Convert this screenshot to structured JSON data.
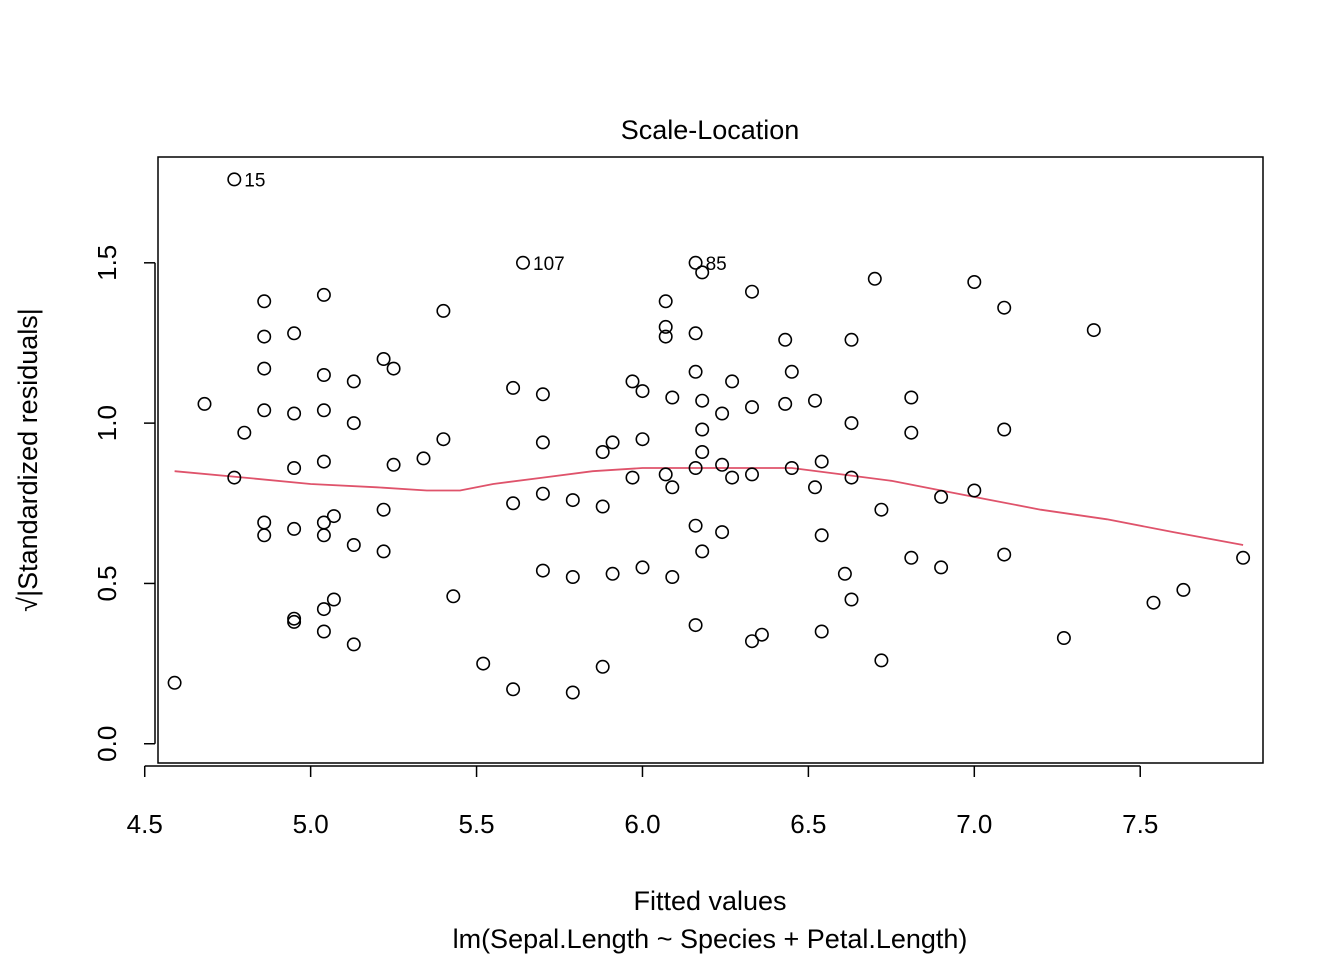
{
  "chart_data": {
    "type": "scatter",
    "title": "Scale-Location",
    "xlabel": "Fitted values",
    "xsublabel": "lm(Sepal.Length ~ Species + Petal.Length)",
    "ylabel": "√|Standardized residuals|",
    "xlim": [
      4.54,
      7.87
    ],
    "ylim": [
      -0.06,
      1.83
    ],
    "xticks": [
      "4.5",
      "5.0",
      "5.5",
      "6.0",
      "6.5",
      "7.0",
      "7.5"
    ],
    "yticks": [
      "0.0",
      "0.5",
      "1.0",
      "1.5"
    ],
    "grid": false,
    "colors": {
      "points": "#000000",
      "smooth": "#DF536B",
      "frame": "#000000"
    },
    "labeled_points": [
      {
        "label": "15",
        "x": 4.77,
        "y": 1.76
      },
      {
        "label": "107",
        "x": 5.64,
        "y": 1.5
      },
      {
        "label": "85",
        "x": 6.16,
        "y": 1.5
      }
    ],
    "points": [
      [
        4.77,
        1.76
      ],
      [
        5.64,
        1.5
      ],
      [
        6.16,
        1.5
      ],
      [
        4.59,
        0.19
      ],
      [
        4.68,
        1.06
      ],
      [
        4.77,
        0.83
      ],
      [
        4.8,
        0.97
      ],
      [
        4.86,
        1.38
      ],
      [
        4.86,
        1.27
      ],
      [
        4.86,
        1.17
      ],
      [
        4.86,
        1.04
      ],
      [
        4.86,
        0.69
      ],
      [
        4.86,
        0.65
      ],
      [
        4.95,
        1.28
      ],
      [
        4.95,
        1.03
      ],
      [
        4.95,
        0.86
      ],
      [
        4.95,
        0.67
      ],
      [
        4.95,
        0.39
      ],
      [
        4.95,
        0.38
      ],
      [
        5.04,
        1.4
      ],
      [
        5.04,
        1.15
      ],
      [
        5.04,
        1.04
      ],
      [
        5.04,
        0.88
      ],
      [
        5.04,
        0.69
      ],
      [
        5.04,
        0.65
      ],
      [
        5.04,
        0.42
      ],
      [
        5.04,
        0.35
      ],
      [
        5.07,
        0.71
      ],
      [
        5.07,
        0.45
      ],
      [
        5.13,
        1.13
      ],
      [
        5.13,
        1.0
      ],
      [
        5.13,
        0.62
      ],
      [
        5.13,
        0.31
      ],
      [
        5.22,
        1.2
      ],
      [
        5.22,
        0.73
      ],
      [
        5.22,
        0.6
      ],
      [
        5.25,
        1.17
      ],
      [
        5.25,
        0.87
      ],
      [
        5.34,
        0.89
      ],
      [
        5.4,
        1.35
      ],
      [
        5.4,
        0.95
      ],
      [
        5.43,
        0.46
      ],
      [
        5.52,
        0.25
      ],
      [
        5.61,
        1.11
      ],
      [
        5.61,
        0.75
      ],
      [
        5.61,
        0.17
      ],
      [
        5.7,
        1.09
      ],
      [
        5.7,
        0.94
      ],
      [
        5.7,
        0.78
      ],
      [
        5.7,
        0.54
      ],
      [
        5.79,
        0.76
      ],
      [
        5.79,
        0.52
      ],
      [
        5.79,
        0.16
      ],
      [
        5.88,
        0.91
      ],
      [
        5.88,
        0.74
      ],
      [
        5.88,
        0.24
      ],
      [
        5.91,
        0.94
      ],
      [
        5.91,
        0.53
      ],
      [
        5.97,
        1.13
      ],
      [
        5.97,
        0.83
      ],
      [
        6.0,
        1.1
      ],
      [
        6.0,
        0.95
      ],
      [
        6.0,
        0.55
      ],
      [
        6.07,
        1.38
      ],
      [
        6.07,
        1.3
      ],
      [
        6.07,
        1.27
      ],
      [
        6.07,
        0.84
      ],
      [
        6.09,
        1.08
      ],
      [
        6.09,
        0.8
      ],
      [
        6.09,
        0.52
      ],
      [
        6.16,
        1.28
      ],
      [
        6.16,
        1.16
      ],
      [
        6.16,
        0.86
      ],
      [
        6.16,
        0.68
      ],
      [
        6.16,
        0.37
      ],
      [
        6.18,
        1.47
      ],
      [
        6.18,
        1.07
      ],
      [
        6.18,
        0.98
      ],
      [
        6.18,
        0.91
      ],
      [
        6.18,
        0.6
      ],
      [
        6.24,
        1.03
      ],
      [
        6.24,
        0.87
      ],
      [
        6.24,
        0.66
      ],
      [
        6.27,
        1.13
      ],
      [
        6.27,
        0.83
      ],
      [
        6.33,
        1.41
      ],
      [
        6.33,
        1.05
      ],
      [
        6.33,
        0.84
      ],
      [
        6.33,
        0.32
      ],
      [
        6.36,
        0.34
      ],
      [
        6.43,
        1.26
      ],
      [
        6.43,
        1.06
      ],
      [
        6.45,
        1.16
      ],
      [
        6.45,
        0.86
      ],
      [
        6.52,
        1.07
      ],
      [
        6.52,
        0.8
      ],
      [
        6.54,
        0.88
      ],
      [
        6.54,
        0.65
      ],
      [
        6.54,
        0.35
      ],
      [
        6.61,
        0.53
      ],
      [
        6.63,
        1.26
      ],
      [
        6.63,
        1.0
      ],
      [
        6.63,
        0.83
      ],
      [
        6.63,
        0.45
      ],
      [
        6.7,
        1.45
      ],
      [
        6.72,
        0.73
      ],
      [
        6.72,
        0.26
      ],
      [
        6.81,
        1.08
      ],
      [
        6.81,
        0.97
      ],
      [
        6.81,
        0.58
      ],
      [
        6.9,
        0.77
      ],
      [
        6.9,
        0.55
      ],
      [
        7.0,
        1.44
      ],
      [
        7.0,
        0.79
      ],
      [
        7.09,
        1.36
      ],
      [
        7.09,
        0.98
      ],
      [
        7.09,
        0.59
      ],
      [
        7.27,
        0.33
      ],
      [
        7.36,
        1.29
      ],
      [
        7.54,
        0.44
      ],
      [
        7.63,
        0.48
      ],
      [
        7.81,
        0.58
      ]
    ],
    "smooth": [
      [
        4.59,
        0.85
      ],
      [
        4.8,
        0.83
      ],
      [
        5.0,
        0.81
      ],
      [
        5.2,
        0.8
      ],
      [
        5.35,
        0.79
      ],
      [
        5.45,
        0.79
      ],
      [
        5.55,
        0.81
      ],
      [
        5.7,
        0.83
      ],
      [
        5.85,
        0.85
      ],
      [
        6.0,
        0.86
      ],
      [
        6.15,
        0.86
      ],
      [
        6.3,
        0.86
      ],
      [
        6.45,
        0.86
      ],
      [
        6.6,
        0.84
      ],
      [
        6.75,
        0.82
      ],
      [
        6.9,
        0.79
      ],
      [
        7.05,
        0.76
      ],
      [
        7.2,
        0.73
      ],
      [
        7.4,
        0.7
      ],
      [
        7.6,
        0.66
      ],
      [
        7.81,
        0.62
      ]
    ]
  }
}
